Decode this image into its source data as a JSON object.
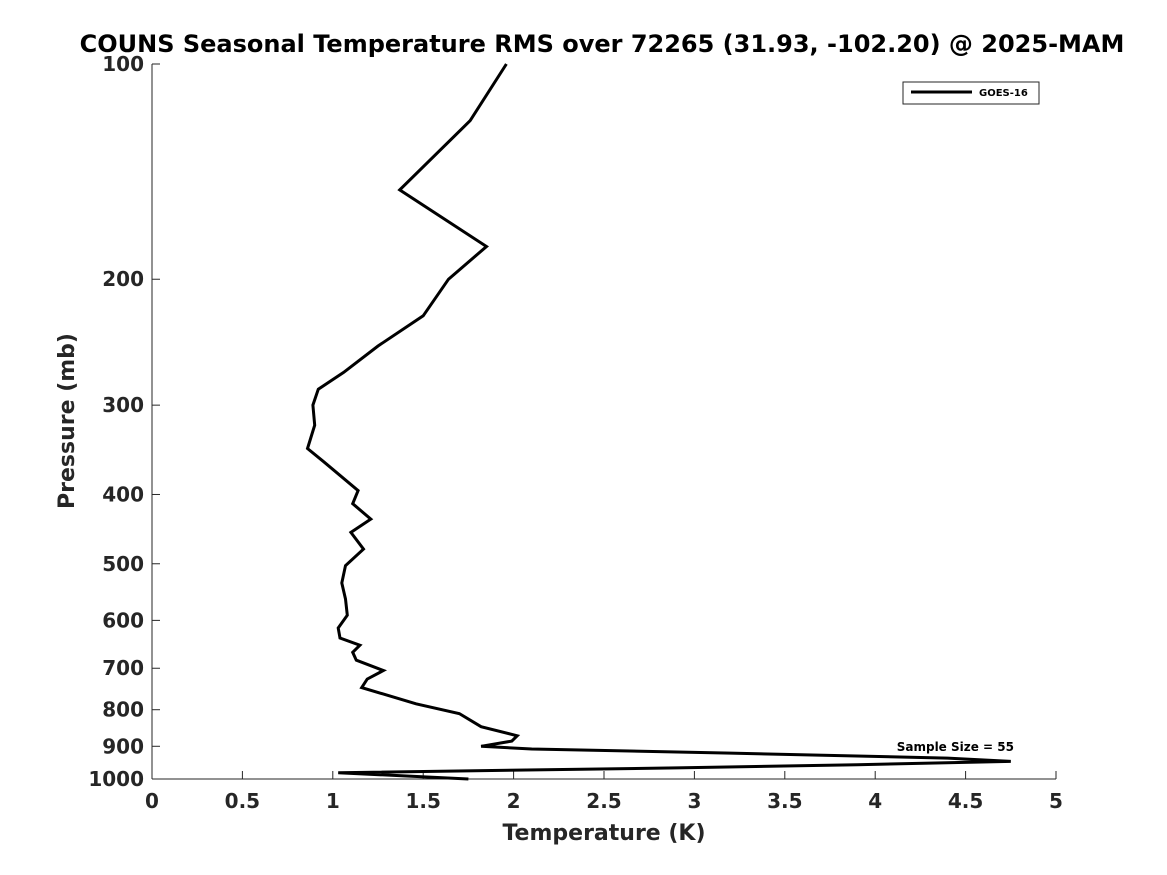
{
  "chart_data": {
    "type": "line",
    "title": "COUNS Seasonal Temperature RMS over 72265 (31.93, -102.20) @ 2025-MAM",
    "xlabel": "Temperature (K)",
    "ylabel": "Pressure (mb)",
    "xlim": [
      0,
      5
    ],
    "ylim": [
      100,
      1000
    ],
    "y_scale": "log",
    "y_reversed": true,
    "x_ticks": [
      0,
      0.5,
      1,
      1.5,
      2,
      2.5,
      3,
      3.5,
      4,
      4.5,
      5
    ],
    "x_tick_labels": [
      "0",
      "0.5",
      "1",
      "1.5",
      "2",
      "2.5",
      "3",
      "3.5",
      "4",
      "4.5",
      "5"
    ],
    "y_ticks": [
      100,
      200,
      300,
      400,
      500,
      600,
      700,
      800,
      900,
      1000
    ],
    "y_tick_labels": [
      "100",
      "200",
      "300",
      "400",
      "500",
      "600",
      "700",
      "800",
      "900",
      "1000"
    ],
    "grid": false,
    "legend_position": "top-right",
    "series": [
      {
        "name": "GOES-16",
        "color": "#000000",
        "x": [
          1.96,
          1.76,
          1.37,
          1.85,
          1.64,
          1.5,
          1.25,
          1.06,
          0.92,
          0.89,
          0.9,
          0.86,
          0.95,
          1.14,
          1.11,
          1.21,
          1.1,
          1.17,
          1.07,
          1.05,
          1.07,
          1.08,
          1.03,
          1.04,
          1.15,
          1.11,
          1.13,
          1.28,
          1.19,
          1.16,
          1.46,
          1.7,
          1.82,
          2.02,
          1.99,
          1.82,
          2.1,
          3.2,
          4.4,
          4.75,
          3.9,
          2.9,
          1.03,
          1.75
        ],
        "y": [
          100,
          120,
          150,
          180,
          200,
          225,
          248,
          270,
          285,
          300,
          320,
          345,
          360,
          395,
          412,
          433,
          452,
          477,
          503,
          532,
          560,
          590,
          615,
          635,
          650,
          665,
          682,
          705,
          725,
          745,
          785,
          810,
          845,
          870,
          885,
          900,
          908,
          920,
          935,
          945,
          955,
          965,
          980,
          1000
        ]
      }
    ],
    "annotations": [
      "Sample Size = 55"
    ]
  }
}
